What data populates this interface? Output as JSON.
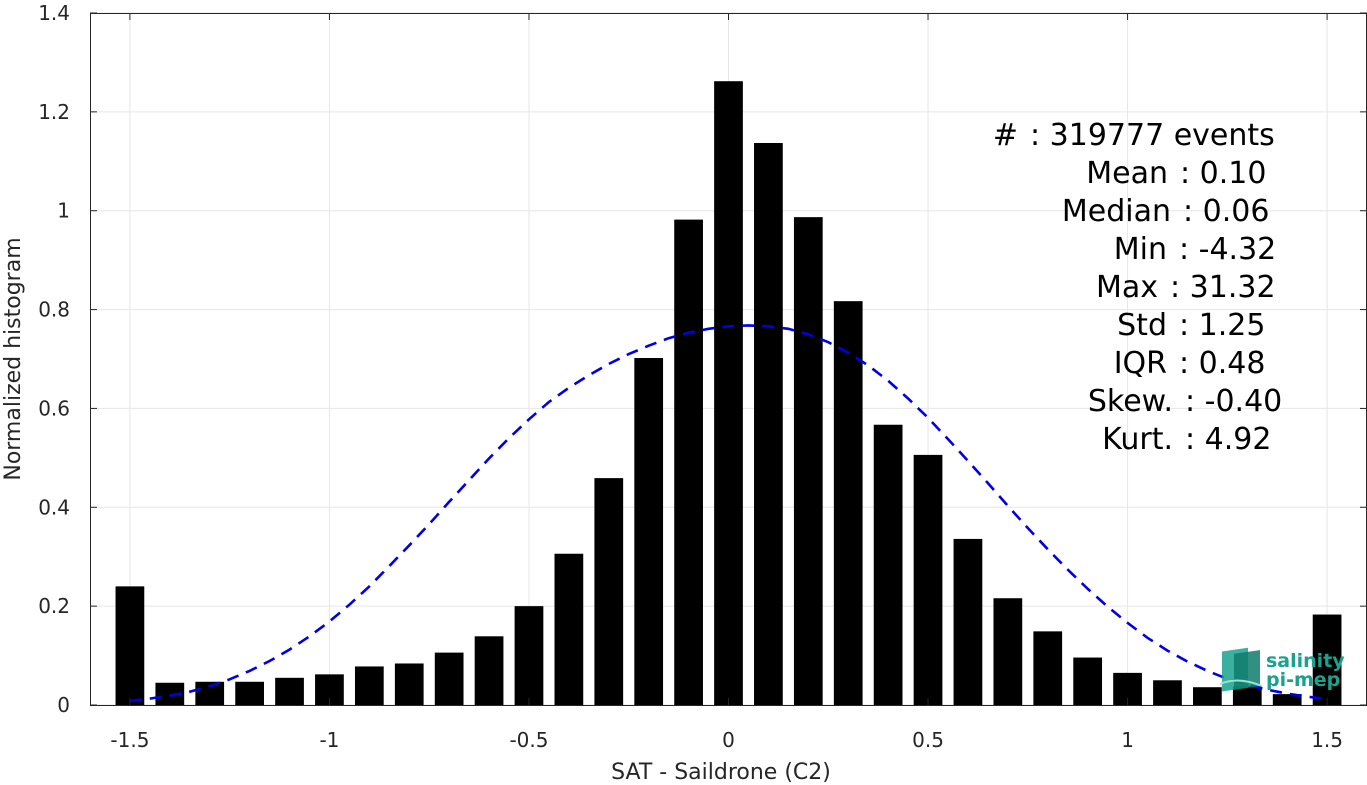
{
  "chart_data": {
    "type": "bar",
    "title": "",
    "xlabel": "SAT - Saildrone (C2)",
    "ylabel": "Normalized histogram",
    "xlim": [
      -1.6,
      1.6
    ],
    "ylim": [
      0,
      1.4
    ],
    "xticks": [
      -1.5,
      -1,
      -0.5,
      0,
      0.5,
      1,
      1.5
    ],
    "xtick_labels": [
      "-1.5",
      "-1",
      "-0.5",
      "0",
      "0.5",
      "1",
      "1.5"
    ],
    "yticks": [
      0,
      0.2,
      0.4,
      0.6,
      0.8,
      1,
      1.2,
      1.4
    ],
    "ytick_labels": [
      "0",
      "0.2",
      "0.4",
      "0.6",
      "0.8",
      "1",
      "1.2",
      "1.4"
    ],
    "grid": true,
    "bar_color": "#000000",
    "bars": {
      "x": [
        -1.5,
        -1.4,
        -1.3,
        -1.2,
        -1.1,
        -1.0,
        -0.9,
        -0.8,
        -0.7,
        -0.6,
        -0.5,
        -0.4,
        -0.3,
        -0.2,
        -0.1,
        0.0,
        0.1,
        0.2,
        0.3,
        0.4,
        0.5,
        0.6,
        0.7,
        0.8,
        0.9,
        1.0,
        1.1,
        1.2,
        1.3,
        1.4,
        1.5
      ],
      "values": [
        0.24,
        0.045,
        0.047,
        0.047,
        0.055,
        0.062,
        0.078,
        0.084,
        0.106,
        0.139,
        0.2,
        0.306,
        0.459,
        0.702,
        0.982,
        1.262,
        1.137,
        0.987,
        0.817,
        0.567,
        0.506,
        0.336,
        0.216,
        0.149,
        0.096,
        0.065,
        0.05,
        0.036,
        0.038,
        0.022,
        0.183
      ]
    },
    "fit": {
      "style": "dashed",
      "color": "#0000e6",
      "x": [
        -1.5,
        -1.45,
        -1.4,
        -1.35,
        -1.3,
        -1.25,
        -1.2,
        -1.15,
        -1.1,
        -1.05,
        -1.0,
        -0.95,
        -0.9,
        -0.85,
        -0.8,
        -0.75,
        -0.7,
        -0.65,
        -0.6,
        -0.55,
        -0.5,
        -0.45,
        -0.4,
        -0.35,
        -0.3,
        -0.25,
        -0.2,
        -0.15,
        -0.1,
        -0.05,
        0.0,
        0.05,
        0.1,
        0.15,
        0.2,
        0.25,
        0.3,
        0.35,
        0.4,
        0.45,
        0.5,
        0.55,
        0.6,
        0.65,
        0.7,
        0.75,
        0.8,
        0.85,
        0.9,
        0.95,
        1.0,
        1.05,
        1.1,
        1.15,
        1.2,
        1.25,
        1.3,
        1.35,
        1.4,
        1.45,
        1.5
      ],
      "y": [
        0.008,
        0.013,
        0.019,
        0.027,
        0.038,
        0.052,
        0.069,
        0.089,
        0.112,
        0.139,
        0.169,
        0.203,
        0.24,
        0.281,
        0.323,
        0.366,
        0.411,
        0.455,
        0.499,
        0.54,
        0.578,
        0.613,
        0.642,
        0.667,
        0.69,
        0.71,
        0.727,
        0.742,
        0.753,
        0.761,
        0.766,
        0.768,
        0.766,
        0.761,
        0.75,
        0.734,
        0.713,
        0.687,
        0.656,
        0.62,
        0.581,
        0.538,
        0.494,
        0.449,
        0.403,
        0.358,
        0.315,
        0.274,
        0.235,
        0.199,
        0.166,
        0.136,
        0.11,
        0.088,
        0.069,
        0.053,
        0.041,
        0.031,
        0.023,
        0.017,
        0.012
      ]
    }
  },
  "stats": [
    {
      "label": "#",
      "sep": " : ",
      "value": "319777 events"
    },
    {
      "label": "Mean",
      "sep": " : ",
      "value": "0.10"
    },
    {
      "label": "Median",
      "sep": " : ",
      "value": "0.06"
    },
    {
      "label": "Min",
      "sep": " : ",
      "value": "-4.32"
    },
    {
      "label": "Max",
      "sep": " : ",
      "value": "31.32"
    },
    {
      "label": "Std",
      "sep": " : ",
      "value": "1.25"
    },
    {
      "label": "IQR",
      "sep": " : ",
      "value": "0.48"
    },
    {
      "label": "Skew.",
      "sep": " : ",
      "value": "-0.40"
    },
    {
      "label": "Kurt.",
      "sep": " : ",
      "value": "4.92"
    }
  ],
  "logo": {
    "line1": "salinity",
    "line2": "pi-mep",
    "color": "#1aa28e"
  }
}
